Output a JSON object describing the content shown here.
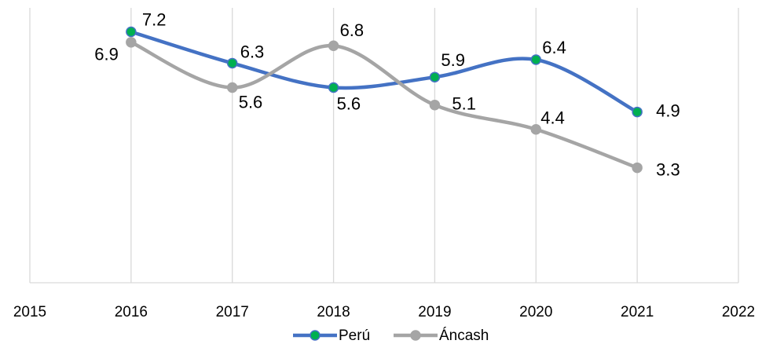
{
  "chart_data": {
    "type": "line",
    "x": [
      2016,
      2017,
      2018,
      2019,
      2020,
      2021
    ],
    "series": [
      {
        "name": "Perú",
        "color": "#4472c4",
        "marker_color": "#00b050",
        "values": [
          7.2,
          6.3,
          5.6,
          5.9,
          6.4,
          4.9
        ]
      },
      {
        "name": "Áncash",
        "color": "#a5a5a5",
        "marker_color": "#a5a5a5",
        "values": [
          6.9,
          5.6,
          6.8,
          5.1,
          4.4,
          3.3
        ]
      }
    ],
    "xlim": [
      2015,
      2022
    ],
    "xticks": [
      2015,
      2016,
      2017,
      2018,
      2019,
      2020,
      2021,
      2022
    ],
    "ylim": [
      0,
      8
    ],
    "grid": true,
    "smooth": true,
    "legend": "bottom"
  }
}
